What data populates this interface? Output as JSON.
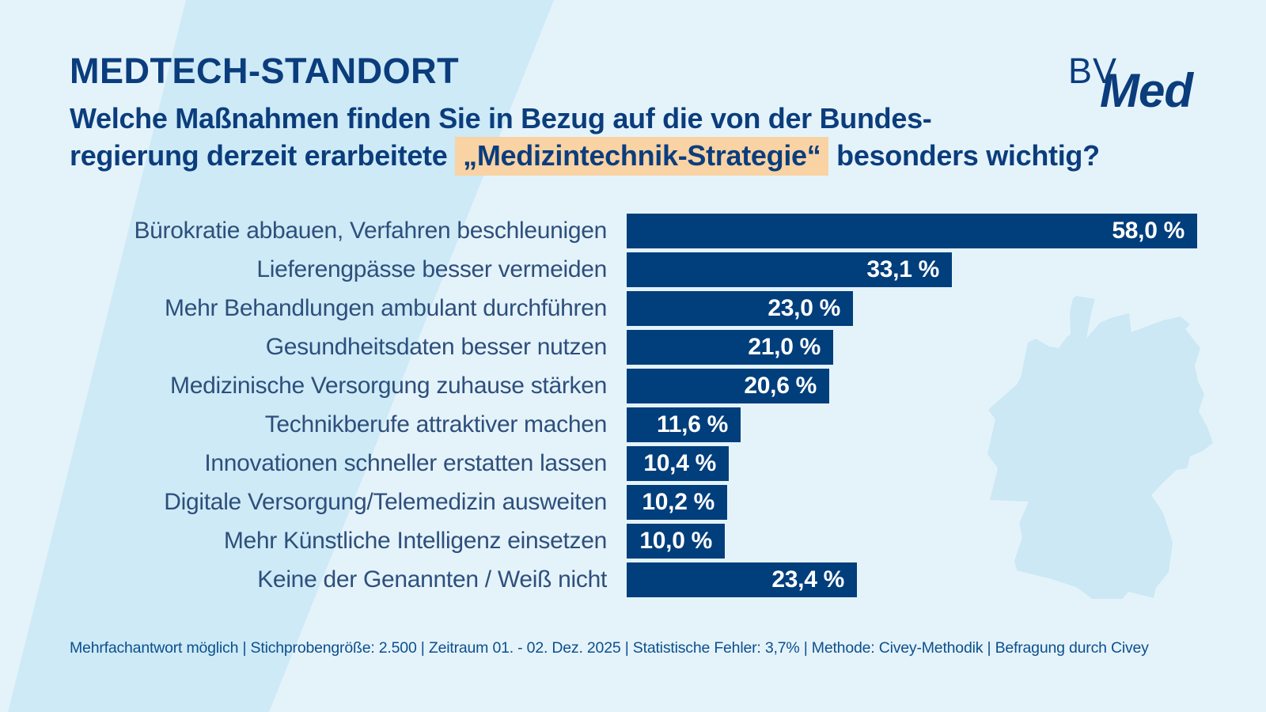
{
  "header": {
    "kicker": "MEDTECH-STANDORT",
    "question_line1": "Welche Maßnahmen finden Sie in Bezug auf die von der Bundes-",
    "question_line2_before": "regierung derzeit erarbeitete ",
    "question_highlight": "„Medizintechnik-Strategie“",
    "question_line2_after": " besonders wichtig?"
  },
  "logo": {
    "bv": "BV",
    "med": "Med"
  },
  "chart_data": {
    "type": "bar",
    "orientation": "horizontal",
    "unit": "percent",
    "categories": [
      "Bürokratie abbauen, Verfahren beschleunigen",
      "Lieferengpässe besser vermeiden",
      "Mehr Behandlungen ambulant durchführen",
      "Gesundheitsdaten besser nutzen",
      "Medizinische Versorgung zuhause stärken",
      "Technikberufe attraktiver machen",
      "Innovationen schneller erstatten lassen",
      "Digitale Versorgung/Telemedizin ausweiten",
      "Mehr Künstliche Intelligenz einsetzen",
      "Keine der Genannten / Weiß nicht"
    ],
    "values": [
      58.0,
      33.1,
      23.0,
      21.0,
      20.6,
      11.6,
      10.4,
      10.2,
      10.0,
      23.4
    ],
    "value_labels": [
      "58,0 %",
      "33,1 %",
      "23,0 %",
      "21,0 %",
      "20,6 %",
      "11,6 %",
      "10,4 %",
      "10,2 %",
      "10,0 %",
      "23,4 %"
    ],
    "xlim": [
      0,
      60
    ],
    "grid": false,
    "legend": false,
    "value_label_position": "inside-right"
  },
  "footer": {
    "text": "Mehrfachantwort möglich | Stichprobengröße: 2.500 | Zeitraum 01. - 02. Dez. 2025 | Statistische Fehler: 3,7% | Methode: Civey-Methodik | Befragung durch Civey"
  },
  "colors": {
    "background": "#e4f3fa",
    "diagonal_band": "#cdeaf6",
    "map_fill": "#cbe8f4",
    "bar": "#003e7c",
    "navy_text": "#0b3d7d",
    "category_label": "#2e4f7c",
    "value_text": "#ffffff",
    "footer_text": "#0d4f8d",
    "highlight": "#f9d3a4"
  },
  "icons": {
    "germany_map": "germany-outline-silhouette"
  }
}
